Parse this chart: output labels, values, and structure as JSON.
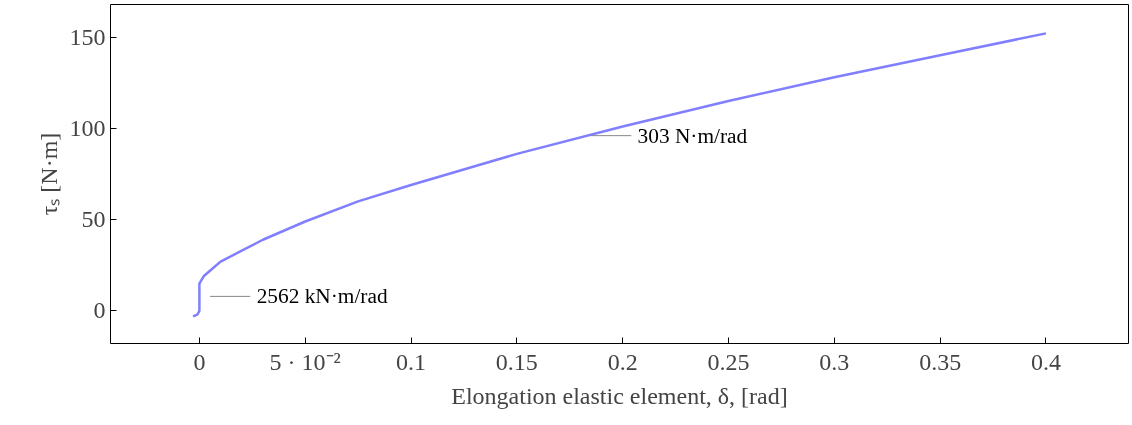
{
  "chart_data": {
    "type": "line",
    "xlabel": "Elongation elastic element, δ, [rad]",
    "ylabel": "τₛ [N·m]",
    "xlim": [
      -0.042,
      0.439
    ],
    "ylim": [
      -17.8,
      167.8
    ],
    "xticks": [
      0,
      {
        "value": 0.05,
        "label": "5 · 10⁻²"
      },
      0.1,
      0.15,
      0.2,
      0.25,
      0.3,
      0.35,
      0.4
    ],
    "yticks": [
      0,
      50,
      100,
      150
    ],
    "series": [
      {
        "color": "#7f7fff",
        "x": [
          -0.003,
          -0.001,
          0,
          0,
          0.002,
          0.005,
          0.01,
          0.02,
          0.03,
          0.05,
          0.075,
          0.1,
          0.15,
          0.2,
          0.25,
          0.3,
          0.35,
          0.4
        ],
        "values": [
          -3,
          -2,
          0,
          15,
          19,
          22,
          27,
          33,
          39,
          49,
          60,
          69,
          86,
          101,
          115,
          128,
          140,
          152
        ]
      }
    ],
    "annotations": [
      {
        "text": "2562 kN·m/rad",
        "x": 0,
        "y": 8
      },
      {
        "text": "303 N·m/rad",
        "x": 0.18,
        "y": 96
      }
    ],
    "grid": false,
    "marker": "none",
    "line_style": "solid"
  }
}
